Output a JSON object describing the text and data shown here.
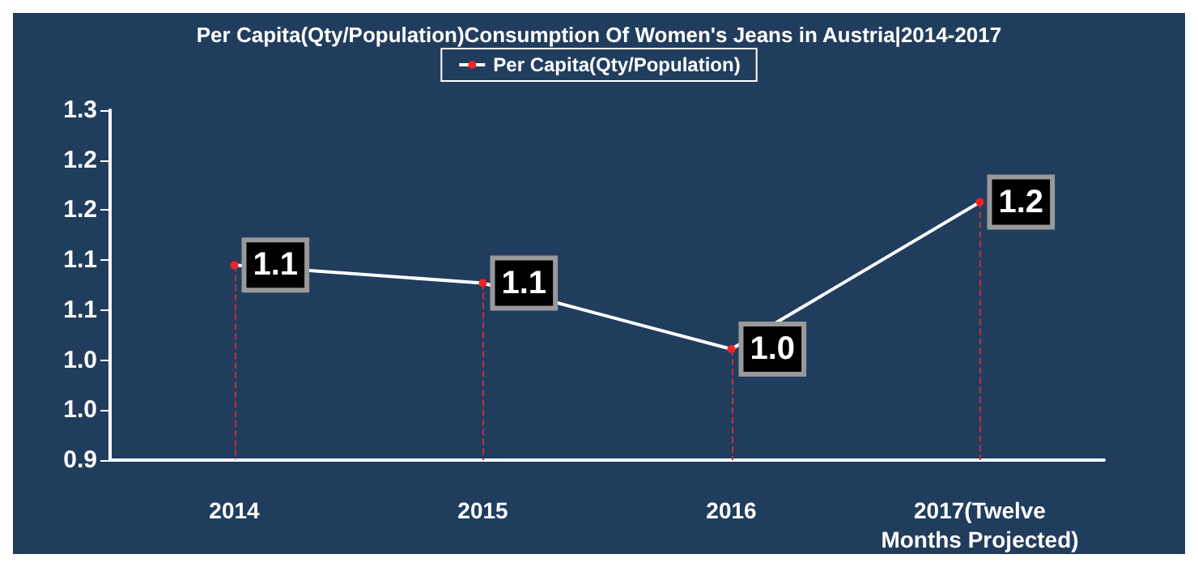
{
  "chart_data": {
    "type": "line",
    "title": "Per Capita(Qty/Population)Consumption Of Women's Jeans in Austria|2014-2017",
    "categories": [
      "2014",
      "2015",
      "2016",
      "2017(Twelve Months Projected)"
    ],
    "series": [
      {
        "name": "Per Capita(Qty/Population)",
        "color": "#ffffff",
        "values": [
          1.095,
          1.077,
          1.011,
          1.158
        ],
        "value_labels": [
          "1.1",
          "1.1",
          "1.0",
          "1.2"
        ]
      }
    ],
    "ylim": [
      0.9,
      1.25
    ],
    "yticks": [
      {
        "value": 0.9,
        "label": "0.9"
      },
      {
        "value": 0.95,
        "label": "1.0"
      },
      {
        "value": 1.0,
        "label": "1.0"
      },
      {
        "value": 1.05,
        "label": "1.1"
      },
      {
        "value": 1.1,
        "label": "1.1"
      },
      {
        "value": 1.15,
        "label": "1.2"
      },
      {
        "value": 1.2,
        "label": "1.2"
      },
      {
        "value": 1.25,
        "label": "1.3"
      }
    ],
    "grid": false,
    "legend": "top",
    "marker": "circle",
    "line_style": "solid"
  }
}
